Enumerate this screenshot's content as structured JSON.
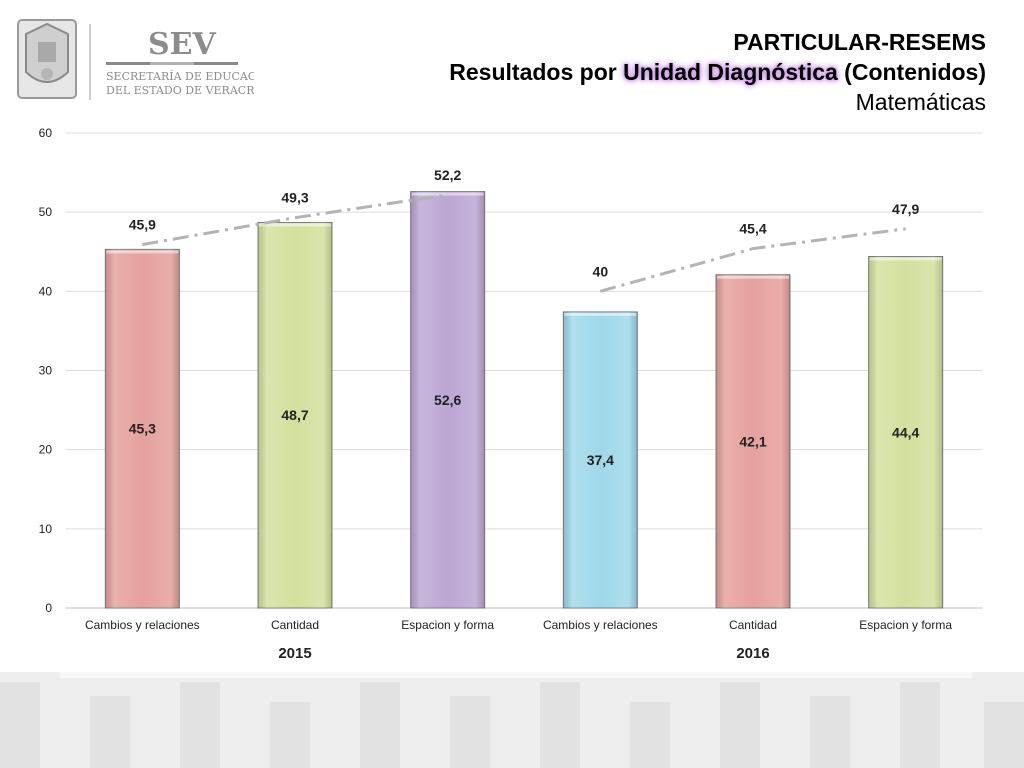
{
  "header": {
    "logo_name": "SEV",
    "logo_line1": "SECRETARÍA DE EDUCACIÓN",
    "logo_line2": "DEL ESTADO DE VERACRUZ",
    "title1": "PARTICULAR-RESEMS",
    "title2_a": "Resultados por ",
    "title2_b": "Unidad Diagnóstica",
    "title2_c": " (Contenidos)",
    "title3": "Matemáticas"
  },
  "chart_data": {
    "type": "bar",
    "title": "",
    "xlabel": "",
    "ylabel": "",
    "ylim": [
      0,
      60
    ],
    "yticks": [
      "0",
      "10",
      "20",
      "30",
      "40",
      "50",
      "60"
    ],
    "grid": true,
    "categories": [
      "Cambios y relaciones",
      "Cantidad",
      "Espacion y forma",
      "Cambios y relaciones",
      "Cantidad",
      "Espacion y forma"
    ],
    "groups": [
      {
        "label": "2015",
        "span": [
          0,
          2
        ]
      },
      {
        "label": "2016",
        "span": [
          3,
          5
        ]
      }
    ],
    "values": [
      45.3,
      48.7,
      52.6,
      37.4,
      42.1,
      44.4
    ],
    "value_labels": [
      "45,3",
      "48,7",
      "52,6",
      "37,4",
      "42,1",
      "44,4"
    ],
    "bar_colors": [
      "#e5a09c",
      "#d3e09e",
      "#bca6d4",
      "#9fd8ea",
      "#e5a09c",
      "#d3e09e"
    ],
    "reference_lines": [
      {
        "values": [
          45.9,
          49.3,
          52.2
        ],
        "labels": [
          "45,9",
          "49,3",
          "52,2"
        ],
        "indices": [
          0,
          1,
          2
        ]
      },
      {
        "values": [
          40,
          45.4,
          47.9
        ],
        "labels": [
          "40",
          "45,4",
          "47,9"
        ],
        "indices": [
          3,
          4,
          5
        ]
      }
    ],
    "reference_color": "#b3b3b3"
  }
}
